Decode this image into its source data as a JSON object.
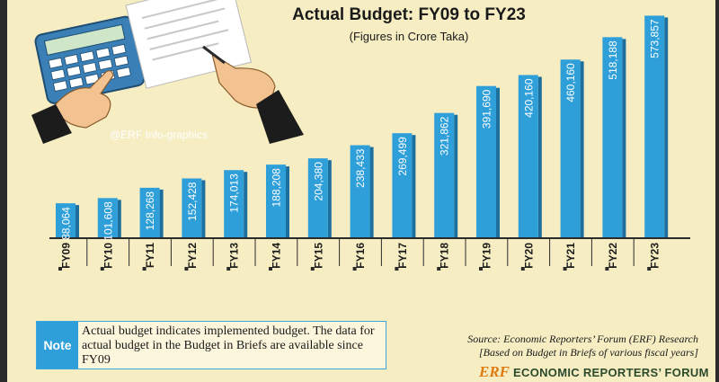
{
  "header": {
    "title": "Actual Budget: FY09 to FY23",
    "subtitle": "(Figures in Crore Taka)",
    "watermark": "@ERF Info-graphics"
  },
  "chart_data": {
    "type": "bar",
    "title": "Actual Budget: FY09 to FY23",
    "subtitle": "(Figures in Crore Taka)",
    "categories": [
      "FY09",
      "FY10",
      "FY11",
      "FY12",
      "FY13",
      "FY14",
      "FY15",
      "FY16",
      "FY17",
      "FY18",
      "FY19",
      "FY20",
      "FY21",
      "FY22",
      "FY23"
    ],
    "values": [
      88064,
      101608,
      128268,
      152428,
      174013,
      188208,
      204380,
      238433,
      269499,
      321862,
      391690,
      420160,
      460160,
      518188,
      573857
    ],
    "value_labels": [
      "88,064",
      "101,608",
      "128,268",
      "152,428",
      "174,013",
      "188,208",
      "204,380",
      "238,433",
      "269,499",
      "321,862",
      "391,690",
      "420,160",
      "460,160",
      "518,188",
      "573,857"
    ],
    "xlabel": "",
    "ylabel": "",
    "ylim": [
      0,
      600000
    ],
    "grid": false,
    "bar_color": "#2f9fda"
  },
  "note": {
    "label": "Note",
    "text": "Actual budget indicates implemented budget. The data for actual budget in the Budget in Briefs are available since FY09"
  },
  "source": {
    "line1": "Source: Economic Reporters’ Forum (ERF) Research",
    "line2": "[Based on Budget in Briefs of various fiscal years]"
  },
  "logo": {
    "mark": "ERF",
    "text": "ECONOMIC REPORTERS’ FORUM"
  }
}
